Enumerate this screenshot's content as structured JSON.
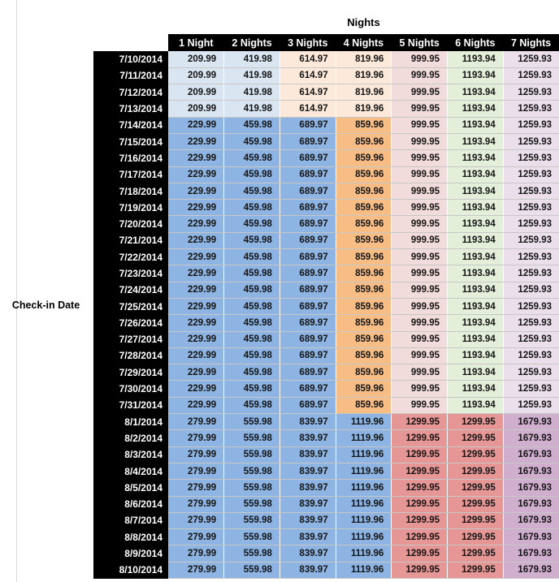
{
  "style": {
    "palette": {
      "light_blue": "#D9E5F1",
      "medium_blue": "#8DB4E3",
      "light_tan": "#FCE9D9",
      "orange": "#F8BC85",
      "light_pink": "#F1DCDB",
      "salmon": "#E69694",
      "light_green": "#E3EFD9",
      "light_lavender": "#EADFEB",
      "mauve": "#CFAFCD",
      "header_bg": "#000000",
      "header_text": "#FFFFFF"
    },
    "band_column_colors": {
      "A": [
        "light_blue",
        "light_blue",
        "light_tan",
        "light_tan",
        "light_pink",
        "light_green",
        "light_lavender"
      ],
      "B": [
        "medium_blue",
        "medium_blue",
        "medium_blue",
        "orange",
        "light_pink",
        "light_green",
        "light_lavender"
      ],
      "C": [
        "medium_blue",
        "medium_blue",
        "medium_blue",
        "medium_blue",
        "salmon",
        "salmon",
        "mauve"
      ]
    }
  },
  "chart_data": {
    "type": "table",
    "title": "Nights",
    "row_header_label": "Check-in Date",
    "columns": [
      "1 Night",
      "2 Nights",
      "3 Nights",
      "4 Nights",
      "5 Nights",
      "6 Nights",
      "7 Nights"
    ],
    "rows": [
      {
        "date": "7/10/2014",
        "band": "A",
        "values": [
          209.99,
          419.98,
          614.97,
          819.96,
          999.95,
          1193.94,
          1259.93
        ]
      },
      {
        "date": "7/11/2014",
        "band": "A",
        "values": [
          209.99,
          419.98,
          614.97,
          819.96,
          999.95,
          1193.94,
          1259.93
        ]
      },
      {
        "date": "7/12/2014",
        "band": "A",
        "values": [
          209.99,
          419.98,
          614.97,
          819.96,
          999.95,
          1193.94,
          1259.93
        ]
      },
      {
        "date": "7/13/2014",
        "band": "A",
        "values": [
          209.99,
          419.98,
          614.97,
          819.96,
          999.95,
          1193.94,
          1259.93
        ]
      },
      {
        "date": "7/14/2014",
        "band": "B",
        "values": [
          229.99,
          459.98,
          689.97,
          859.96,
          999.95,
          1193.94,
          1259.93
        ]
      },
      {
        "date": "7/15/2014",
        "band": "B",
        "values": [
          229.99,
          459.98,
          689.97,
          859.96,
          999.95,
          1193.94,
          1259.93
        ]
      },
      {
        "date": "7/16/2014",
        "band": "B",
        "values": [
          229.99,
          459.98,
          689.97,
          859.96,
          999.95,
          1193.94,
          1259.93
        ]
      },
      {
        "date": "7/17/2014",
        "band": "B",
        "values": [
          229.99,
          459.98,
          689.97,
          859.96,
          999.95,
          1193.94,
          1259.93
        ]
      },
      {
        "date": "7/18/2014",
        "band": "B",
        "values": [
          229.99,
          459.98,
          689.97,
          859.96,
          999.95,
          1193.94,
          1259.93
        ]
      },
      {
        "date": "7/19/2014",
        "band": "B",
        "values": [
          229.99,
          459.98,
          689.97,
          859.96,
          999.95,
          1193.94,
          1259.93
        ]
      },
      {
        "date": "7/20/2014",
        "band": "B",
        "values": [
          229.99,
          459.98,
          689.97,
          859.96,
          999.95,
          1193.94,
          1259.93
        ]
      },
      {
        "date": "7/21/2014",
        "band": "B",
        "values": [
          229.99,
          459.98,
          689.97,
          859.96,
          999.95,
          1193.94,
          1259.93
        ]
      },
      {
        "date": "7/22/2014",
        "band": "B",
        "values": [
          229.99,
          459.98,
          689.97,
          859.96,
          999.95,
          1193.94,
          1259.93
        ]
      },
      {
        "date": "7/23/2014",
        "band": "B",
        "values": [
          229.99,
          459.98,
          689.97,
          859.96,
          999.95,
          1193.94,
          1259.93
        ]
      },
      {
        "date": "7/24/2014",
        "band": "B",
        "values": [
          229.99,
          459.98,
          689.97,
          859.96,
          999.95,
          1193.94,
          1259.93
        ]
      },
      {
        "date": "7/25/2014",
        "band": "B",
        "values": [
          229.99,
          459.98,
          689.97,
          859.96,
          999.95,
          1193.94,
          1259.93
        ]
      },
      {
        "date": "7/26/2014",
        "band": "B",
        "values": [
          229.99,
          459.98,
          689.97,
          859.96,
          999.95,
          1193.94,
          1259.93
        ]
      },
      {
        "date": "7/27/2014",
        "band": "B",
        "values": [
          229.99,
          459.98,
          689.97,
          859.96,
          999.95,
          1193.94,
          1259.93
        ]
      },
      {
        "date": "7/28/2014",
        "band": "B",
        "values": [
          229.99,
          459.98,
          689.97,
          859.96,
          999.95,
          1193.94,
          1259.93
        ]
      },
      {
        "date": "7/29/2014",
        "band": "B",
        "values": [
          229.99,
          459.98,
          689.97,
          859.96,
          999.95,
          1193.94,
          1259.93
        ]
      },
      {
        "date": "7/30/2014",
        "band": "B",
        "values": [
          229.99,
          459.98,
          689.97,
          859.96,
          999.95,
          1193.94,
          1259.93
        ]
      },
      {
        "date": "7/31/2014",
        "band": "B",
        "values": [
          229.99,
          459.98,
          689.97,
          859.96,
          999.95,
          1193.94,
          1259.93
        ]
      },
      {
        "date": "8/1/2014",
        "band": "C",
        "values": [
          279.99,
          559.98,
          839.97,
          1119.96,
          1299.95,
          1299.95,
          1679.93
        ]
      },
      {
        "date": "8/2/2014",
        "band": "C",
        "values": [
          279.99,
          559.98,
          839.97,
          1119.96,
          1299.95,
          1299.95,
          1679.93
        ]
      },
      {
        "date": "8/3/2014",
        "band": "C",
        "values": [
          279.99,
          559.98,
          839.97,
          1119.96,
          1299.95,
          1299.95,
          1679.93
        ]
      },
      {
        "date": "8/4/2014",
        "band": "C",
        "values": [
          279.99,
          559.98,
          839.97,
          1119.96,
          1299.95,
          1299.95,
          1679.93
        ]
      },
      {
        "date": "8/5/2014",
        "band": "C",
        "values": [
          279.99,
          559.98,
          839.97,
          1119.96,
          1299.95,
          1299.95,
          1679.93
        ]
      },
      {
        "date": "8/6/2014",
        "band": "C",
        "values": [
          279.99,
          559.98,
          839.97,
          1119.96,
          1299.95,
          1299.95,
          1679.93
        ]
      },
      {
        "date": "8/7/2014",
        "band": "C",
        "values": [
          279.99,
          559.98,
          839.97,
          1119.96,
          1299.95,
          1299.95,
          1679.93
        ]
      },
      {
        "date": "8/8/2014",
        "band": "C",
        "values": [
          279.99,
          559.98,
          839.97,
          1119.96,
          1299.95,
          1299.95,
          1679.93
        ]
      },
      {
        "date": "8/9/2014",
        "band": "C",
        "values": [
          279.99,
          559.98,
          839.97,
          1119.96,
          1299.95,
          1299.95,
          1679.93
        ]
      },
      {
        "date": "8/10/2014",
        "band": "C",
        "values": [
          279.99,
          559.98,
          839.97,
          1119.96,
          1299.95,
          1299.95,
          1679.93
        ]
      }
    ]
  }
}
